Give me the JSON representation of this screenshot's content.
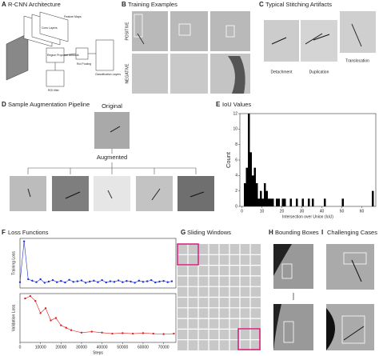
{
  "panels": {
    "a": {
      "letter": "A",
      "title": "R-CNN Architecture",
      "labels": [
        "Feature Maps",
        "Conv Layers",
        "Region Proposal Network",
        "RoI Pooling",
        "Classification Layers",
        "ROI filter"
      ]
    },
    "b": {
      "letter": "B",
      "title": "Training Examples",
      "rows": [
        "POSITIVE",
        "NEGATIVE"
      ]
    },
    "c": {
      "letter": "C",
      "title": "Typical Stitching Artifacts",
      "labels": [
        "Detachment",
        "Duplication",
        "Translocation"
      ]
    },
    "d": {
      "letter": "D",
      "title": "Sample Augmentation Pipeline",
      "original": "Original",
      "augmented": "Augmented"
    },
    "e": {
      "letter": "E",
      "title": "IoU Values"
    },
    "f": {
      "letter": "F",
      "title": "Loss Functions"
    },
    "g": {
      "letter": "G",
      "title": "Sliding Windows"
    },
    "h": {
      "letter": "H",
      "title": "Bounding Boxes"
    },
    "i": {
      "letter": "I",
      "title": "Challenging Cases"
    }
  },
  "chart_data": [
    {
      "type": "histogram",
      "xlabel": "Intersection over Union (IoU)",
      "ylabel": "Count",
      "color": "#000000",
      "bins": [
        0,
        1,
        2,
        3,
        4,
        5,
        6,
        7,
        8,
        9,
        10,
        11,
        12,
        13,
        14,
        15,
        16,
        17,
        18,
        19,
        20,
        21,
        22,
        23,
        24,
        25,
        26,
        27,
        28,
        29,
        30,
        31,
        32,
        33,
        34,
        35,
        36,
        37,
        38,
        39,
        40,
        41,
        42,
        43,
        44,
        45,
        46,
        47,
        48,
        49,
        50,
        51,
        52,
        53,
        54,
        55,
        56,
        57,
        58,
        59,
        60,
        61,
        62,
        63,
        64,
        65,
        66
      ],
      "counts": [
        0,
        3,
        5,
        12,
        7,
        4,
        5,
        3,
        1,
        2,
        1,
        3,
        2,
        1,
        1,
        1,
        0,
        1,
        1,
        0,
        1,
        1,
        0,
        0,
        1,
        0,
        0,
        1,
        0,
        0,
        1,
        0,
        0,
        1,
        0,
        1,
        0,
        0,
        0,
        0,
        0,
        1,
        0,
        0,
        0,
        0,
        0,
        0,
        0,
        0,
        1,
        0,
        0,
        0,
        0,
        0,
        0,
        0,
        0,
        0,
        0,
        0,
        0,
        0,
        0,
        2
      ],
      "xlim": [
        -1,
        67
      ],
      "ylim": [
        0,
        12
      ],
      "xticks": [
        0,
        10,
        20,
        30,
        40,
        50,
        60
      ],
      "yticks": [
        0,
        2,
        4,
        6,
        8,
        10,
        12
      ]
    },
    {
      "type": "line",
      "ylabel": "Training Loss",
      "color": "#1f2fd6",
      "x": [
        0,
        2000,
        4000,
        6000,
        8000,
        10000,
        12000,
        14000,
        16000,
        18000,
        20000,
        22000,
        24000,
        26000,
        28000,
        30000,
        32000,
        34000,
        36000,
        38000,
        40000,
        42000,
        44000,
        46000,
        48000,
        50000,
        52000,
        54000,
        56000,
        58000,
        60000,
        62000,
        64000,
        66000,
        68000,
        70000,
        72000,
        74000
      ],
      "values": [
        0.02,
        0.16,
        0.03,
        0.025,
        0.02,
        0.03,
        0.018,
        0.022,
        0.027,
        0.02,
        0.024,
        0.019,
        0.028,
        0.021,
        0.023,
        0.026,
        0.018,
        0.022,
        0.025,
        0.02,
        0.027,
        0.019,
        0.023,
        0.021,
        0.026,
        0.02,
        0.024,
        0.022,
        0.018,
        0.025,
        0.021,
        0.023,
        0.027,
        0.019,
        0.022,
        0.024,
        0.02,
        0.023
      ],
      "xlim": [
        0,
        76000
      ],
      "ylim": [
        0,
        0.17
      ]
    },
    {
      "type": "line",
      "xlabel": "Steps",
      "ylabel": "Validation Loss",
      "color": "#e02020",
      "x": [
        2500,
        5000,
        7500,
        10000,
        12500,
        15000,
        17500,
        20000,
        22500,
        25000,
        30000,
        35000,
        40000,
        45000,
        50000,
        55000,
        60000,
        65000,
        70000,
        75000
      ],
      "values": [
        0.09,
        0.095,
        0.085,
        0.06,
        0.07,
        0.045,
        0.05,
        0.035,
        0.03,
        0.025,
        0.02,
        0.022,
        0.02,
        0.018,
        0.019,
        0.018,
        0.019,
        0.018,
        0.017,
        0.018
      ],
      "xlim": [
        0,
        76000
      ],
      "ylim": [
        0,
        0.1
      ],
      "xticks": [
        0,
        10000,
        20000,
        30000,
        40000,
        50000,
        60000,
        70000
      ]
    }
  ]
}
